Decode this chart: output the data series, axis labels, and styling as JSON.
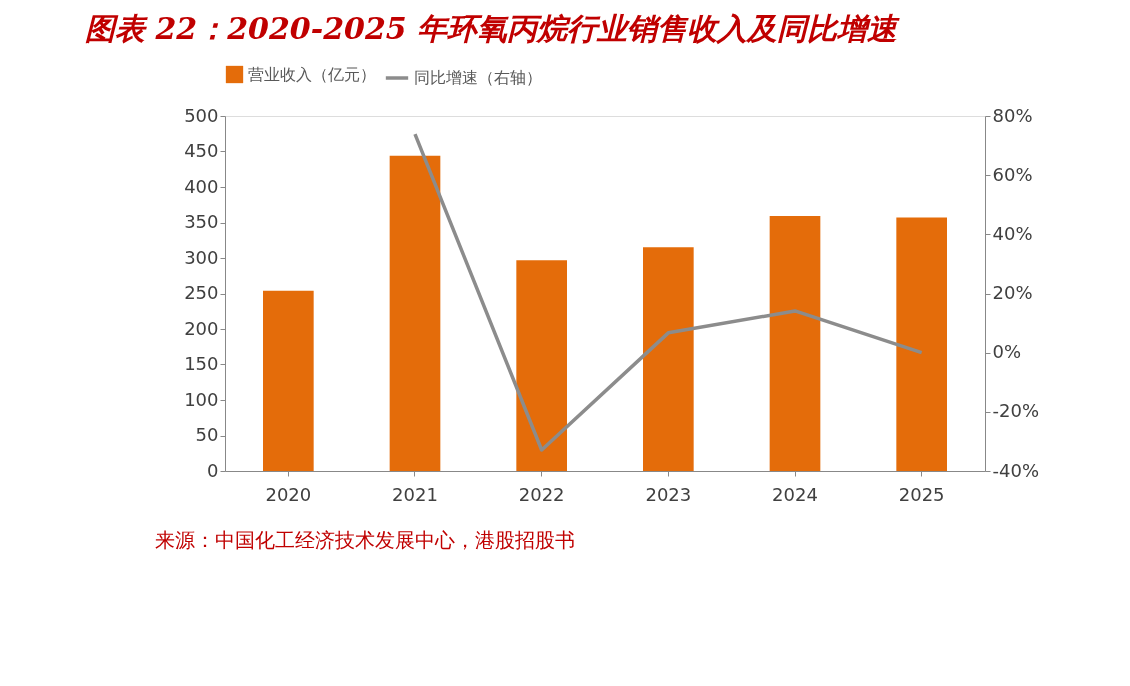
{
  "chart_data": {
    "type": "bar",
    "title": "图表 22：2020-2025 年环氧丙烷行业销售收入及同比增速",
    "categories": [
      "2020",
      "2021",
      "2022",
      "2023",
      "2024",
      "2025"
    ],
    "series": [
      {
        "name": "营业收入（亿元）",
        "color": "#e46c0a",
        "values": [
          254,
          444,
          297,
          315,
          359,
          357
        ]
      },
      {
        "name": "同比增速（右轴）",
        "type": "line",
        "axis": "y2",
        "color": "#8c8c8c",
        "values": [
          null,
          73.9,
          -32.9,
          6.7,
          14.1,
          0
        ]
      }
    ],
    "ylim": [
      0,
      500
    ],
    "yticks": [
      0,
      50,
      100,
      150,
      200,
      250,
      300,
      350,
      400,
      450,
      500
    ],
    "y2lim": [
      -40,
      80
    ],
    "y2ticks": [
      {
        "value": -40,
        "label": "-40%"
      },
      {
        "value": -20,
        "label": "-20%"
      },
      {
        "value": 0,
        "label": "0%"
      },
      {
        "value": 20,
        "label": "20%"
      },
      {
        "value": 40,
        "label": "40%"
      },
      {
        "value": 60,
        "label": "60%"
      },
      {
        "value": 80,
        "label": "80%"
      }
    ],
    "legend": "top",
    "grid": false,
    "marker": "none",
    "annotations": [
      "来源：中国化工经济技术发展中心，港股招股书"
    ]
  }
}
